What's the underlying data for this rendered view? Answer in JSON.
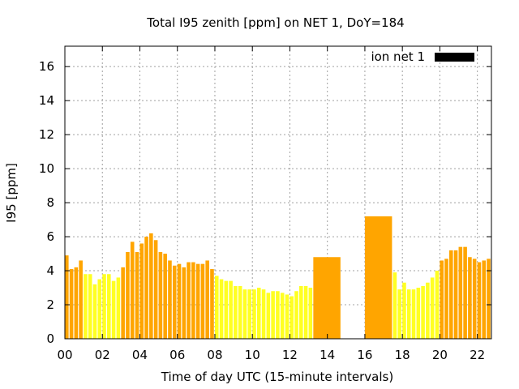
{
  "chart_data": {
    "type": "bar",
    "title": "Total I95 zenith [ppm] on NET 1, DoY=184",
    "xlabel": "Time of day UTC (15-minute intervals)",
    "ylabel": "I95 [ppm]",
    "xlim": [
      0,
      22.75
    ],
    "ylim": [
      0,
      17.2
    ],
    "x_ticks": [
      0,
      2,
      4,
      6,
      8,
      10,
      12,
      14,
      16,
      18,
      20,
      22
    ],
    "x_tick_labels": [
      "00",
      "02",
      "04",
      "06",
      "08",
      "10",
      "12",
      "14",
      "16",
      "18",
      "20",
      "22"
    ],
    "y_ticks": [
      0,
      2,
      4,
      6,
      8,
      10,
      12,
      14,
      16
    ],
    "y_tick_labels": [
      "0",
      "2",
      "4",
      "6",
      "8",
      "10",
      "12",
      "14",
      "16"
    ],
    "grid": true,
    "legend": {
      "position": "top-right",
      "entries": [
        {
          "label": "ion net 1",
          "color": "#000000"
        }
      ]
    },
    "colors": {
      "orange": "#ffa500",
      "yellow": "#ffff22"
    },
    "series": [
      {
        "bars": [
          {
            "x": 0.0,
            "width": 0.25,
            "value": 4.9,
            "color": "#ffa500"
          },
          {
            "x": 0.25,
            "width": 0.25,
            "value": 4.1,
            "color": "#ffa500"
          },
          {
            "x": 0.5,
            "width": 0.25,
            "value": 4.2,
            "color": "#ffa500"
          },
          {
            "x": 0.75,
            "width": 0.25,
            "value": 4.6,
            "color": "#ffa500"
          },
          {
            "x": 1.0,
            "width": 0.25,
            "value": 3.8,
            "color": "#ffff22"
          },
          {
            "x": 1.25,
            "width": 0.25,
            "value": 3.8,
            "color": "#ffff22"
          },
          {
            "x": 1.5,
            "width": 0.25,
            "value": 3.2,
            "color": "#ffff22"
          },
          {
            "x": 1.75,
            "width": 0.25,
            "value": 3.5,
            "color": "#ffff22"
          },
          {
            "x": 2.0,
            "width": 0.25,
            "value": 3.8,
            "color": "#ffff22"
          },
          {
            "x": 2.25,
            "width": 0.25,
            "value": 3.8,
            "color": "#ffff22"
          },
          {
            "x": 2.5,
            "width": 0.25,
            "value": 3.4,
            "color": "#ffff22"
          },
          {
            "x": 2.75,
            "width": 0.25,
            "value": 3.6,
            "color": "#ffff22"
          },
          {
            "x": 3.0,
            "width": 0.25,
            "value": 4.2,
            "color": "#ffa500"
          },
          {
            "x": 3.25,
            "width": 0.25,
            "value": 5.1,
            "color": "#ffa500"
          },
          {
            "x": 3.5,
            "width": 0.25,
            "value": 5.7,
            "color": "#ffa500"
          },
          {
            "x": 3.75,
            "width": 0.25,
            "value": 5.1,
            "color": "#ffa500"
          },
          {
            "x": 4.0,
            "width": 0.25,
            "value": 5.6,
            "color": "#ffa500"
          },
          {
            "x": 4.25,
            "width": 0.25,
            "value": 6.0,
            "color": "#ffa500"
          },
          {
            "x": 4.5,
            "width": 0.25,
            "value": 6.2,
            "color": "#ffa500"
          },
          {
            "x": 4.75,
            "width": 0.25,
            "value": 5.8,
            "color": "#ffa500"
          },
          {
            "x": 5.0,
            "width": 0.25,
            "value": 5.1,
            "color": "#ffa500"
          },
          {
            "x": 5.25,
            "width": 0.25,
            "value": 5.0,
            "color": "#ffa500"
          },
          {
            "x": 5.5,
            "width": 0.25,
            "value": 4.6,
            "color": "#ffa500"
          },
          {
            "x": 5.75,
            "width": 0.25,
            "value": 4.3,
            "color": "#ffa500"
          },
          {
            "x": 6.0,
            "width": 0.25,
            "value": 4.4,
            "color": "#ffa500"
          },
          {
            "x": 6.25,
            "width": 0.25,
            "value": 4.2,
            "color": "#ffa500"
          },
          {
            "x": 6.5,
            "width": 0.25,
            "value": 4.5,
            "color": "#ffa500"
          },
          {
            "x": 6.75,
            "width": 0.25,
            "value": 4.5,
            "color": "#ffa500"
          },
          {
            "x": 7.0,
            "width": 0.25,
            "value": 4.4,
            "color": "#ffa500"
          },
          {
            "x": 7.25,
            "width": 0.25,
            "value": 4.4,
            "color": "#ffa500"
          },
          {
            "x": 7.5,
            "width": 0.25,
            "value": 4.6,
            "color": "#ffa500"
          },
          {
            "x": 7.75,
            "width": 0.25,
            "value": 4.1,
            "color": "#ffa500"
          },
          {
            "x": 8.0,
            "width": 0.25,
            "value": 3.7,
            "color": "#ffff22"
          },
          {
            "x": 8.25,
            "width": 0.25,
            "value": 3.5,
            "color": "#ffff22"
          },
          {
            "x": 8.5,
            "width": 0.25,
            "value": 3.4,
            "color": "#ffff22"
          },
          {
            "x": 8.75,
            "width": 0.25,
            "value": 3.4,
            "color": "#ffff22"
          },
          {
            "x": 9.0,
            "width": 0.25,
            "value": 3.1,
            "color": "#ffff22"
          },
          {
            "x": 9.25,
            "width": 0.25,
            "value": 3.1,
            "color": "#ffff22"
          },
          {
            "x": 9.5,
            "width": 0.25,
            "value": 2.9,
            "color": "#ffff22"
          },
          {
            "x": 9.75,
            "width": 0.25,
            "value": 2.9,
            "color": "#ffff22"
          },
          {
            "x": 10.0,
            "width": 0.25,
            "value": 2.9,
            "color": "#ffff22"
          },
          {
            "x": 10.25,
            "width": 0.25,
            "value": 3.0,
            "color": "#ffff22"
          },
          {
            "x": 10.5,
            "width": 0.25,
            "value": 2.9,
            "color": "#ffff22"
          },
          {
            "x": 10.75,
            "width": 0.25,
            "value": 2.7,
            "color": "#ffff22"
          },
          {
            "x": 11.0,
            "width": 0.25,
            "value": 2.8,
            "color": "#ffff22"
          },
          {
            "x": 11.25,
            "width": 0.25,
            "value": 2.8,
            "color": "#ffff22"
          },
          {
            "x": 11.5,
            "width": 0.25,
            "value": 2.7,
            "color": "#ffff22"
          },
          {
            "x": 11.75,
            "width": 0.25,
            "value": 2.6,
            "color": "#ffff22"
          },
          {
            "x": 12.0,
            "width": 0.25,
            "value": 2.5,
            "color": "#ffff22"
          },
          {
            "x": 12.25,
            "width": 0.25,
            "value": 2.8,
            "color": "#ffff22"
          },
          {
            "x": 12.5,
            "width": 0.25,
            "value": 3.1,
            "color": "#ffff22"
          },
          {
            "x": 12.75,
            "width": 0.25,
            "value": 3.1,
            "color": "#ffff22"
          },
          {
            "x": 13.0,
            "width": 0.25,
            "value": 3.0,
            "color": "#ffff22"
          },
          {
            "x": 13.25,
            "width": 1.5,
            "value": 4.8,
            "color": "#ffa500"
          },
          {
            "x": 16.0,
            "width": 1.5,
            "value": 7.2,
            "color": "#ffa500"
          },
          {
            "x": 17.5,
            "width": 0.25,
            "value": 3.9,
            "color": "#ffff22"
          },
          {
            "x": 17.75,
            "width": 0.25,
            "value": 2.9,
            "color": "#ffff22"
          },
          {
            "x": 18.0,
            "width": 0.25,
            "value": 3.3,
            "color": "#ffff22"
          },
          {
            "x": 18.25,
            "width": 0.25,
            "value": 2.9,
            "color": "#ffff22"
          },
          {
            "x": 18.5,
            "width": 0.25,
            "value": 2.9,
            "color": "#ffff22"
          },
          {
            "x": 18.75,
            "width": 0.25,
            "value": 3.0,
            "color": "#ffff22"
          },
          {
            "x": 19.0,
            "width": 0.25,
            "value": 3.1,
            "color": "#ffff22"
          },
          {
            "x": 19.25,
            "width": 0.25,
            "value": 3.3,
            "color": "#ffff22"
          },
          {
            "x": 19.5,
            "width": 0.25,
            "value": 3.6,
            "color": "#ffff22"
          },
          {
            "x": 19.75,
            "width": 0.25,
            "value": 4.0,
            "color": "#ffff22"
          },
          {
            "x": 20.0,
            "width": 0.25,
            "value": 4.6,
            "color": "#ffa500"
          },
          {
            "x": 20.25,
            "width": 0.25,
            "value": 4.7,
            "color": "#ffa500"
          },
          {
            "x": 20.5,
            "width": 0.25,
            "value": 5.2,
            "color": "#ffa500"
          },
          {
            "x": 20.75,
            "width": 0.25,
            "value": 5.2,
            "color": "#ffa500"
          },
          {
            "x": 21.0,
            "width": 0.25,
            "value": 5.4,
            "color": "#ffa500"
          },
          {
            "x": 21.25,
            "width": 0.25,
            "value": 5.4,
            "color": "#ffa500"
          },
          {
            "x": 21.5,
            "width": 0.25,
            "value": 4.8,
            "color": "#ffa500"
          },
          {
            "x": 21.75,
            "width": 0.25,
            "value": 4.7,
            "color": "#ffa500"
          },
          {
            "x": 22.0,
            "width": 0.25,
            "value": 4.5,
            "color": "#ffa500"
          },
          {
            "x": 22.25,
            "width": 0.25,
            "value": 4.6,
            "color": "#ffa500"
          },
          {
            "x": 22.5,
            "width": 0.25,
            "value": 4.7,
            "color": "#ffa500"
          }
        ]
      }
    ]
  }
}
